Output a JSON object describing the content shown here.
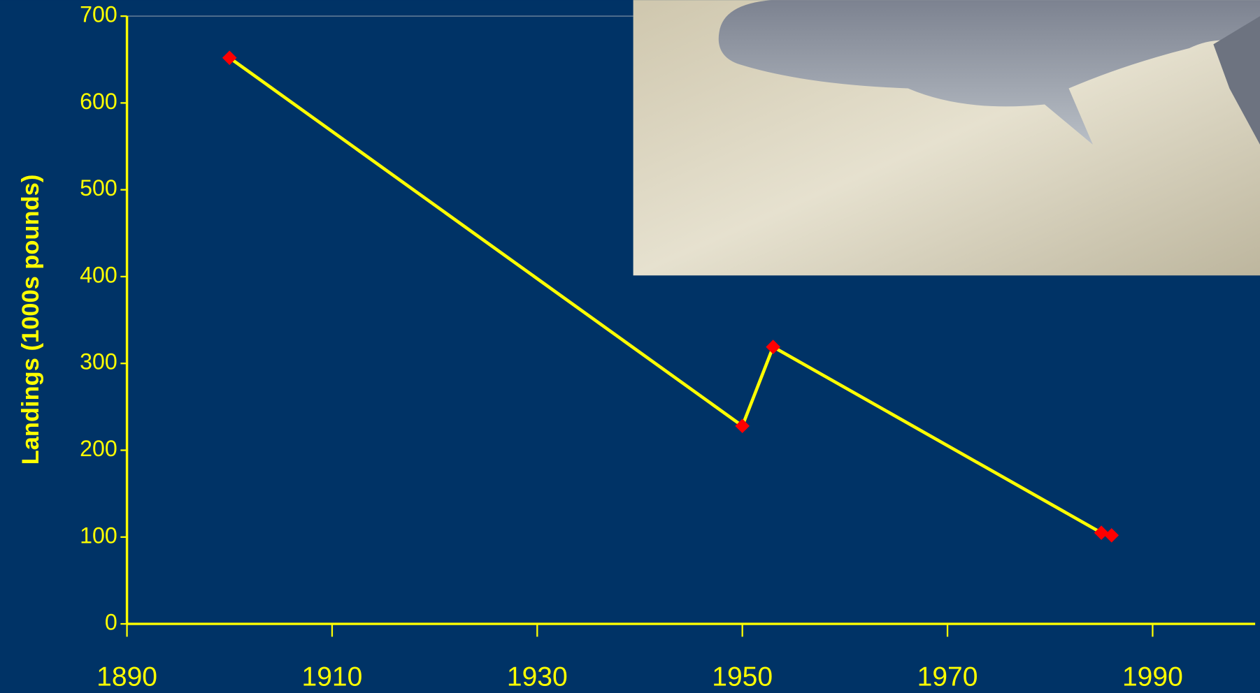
{
  "chart_data": {
    "type": "line",
    "y_label": "Landings (1000s pounds)",
    "x": [
      1900,
      1950,
      1953,
      1985,
      1986
    ],
    "series": [
      {
        "color": "#ffff00",
        "marker_color": "#ff0000",
        "values": [
          652,
          228,
          319,
          105,
          102
        ]
      }
    ],
    "xlim": [
      1890,
      2000
    ],
    "xticks": [
      1890,
      1910,
      1930,
      1950,
      1970,
      1990
    ],
    "ylim": [
      0,
      700
    ],
    "yticks": [
      0,
      100,
      200,
      300,
      400,
      500,
      600,
      700
    ],
    "axis_color": "#ffff00",
    "background": "#003366"
  }
}
